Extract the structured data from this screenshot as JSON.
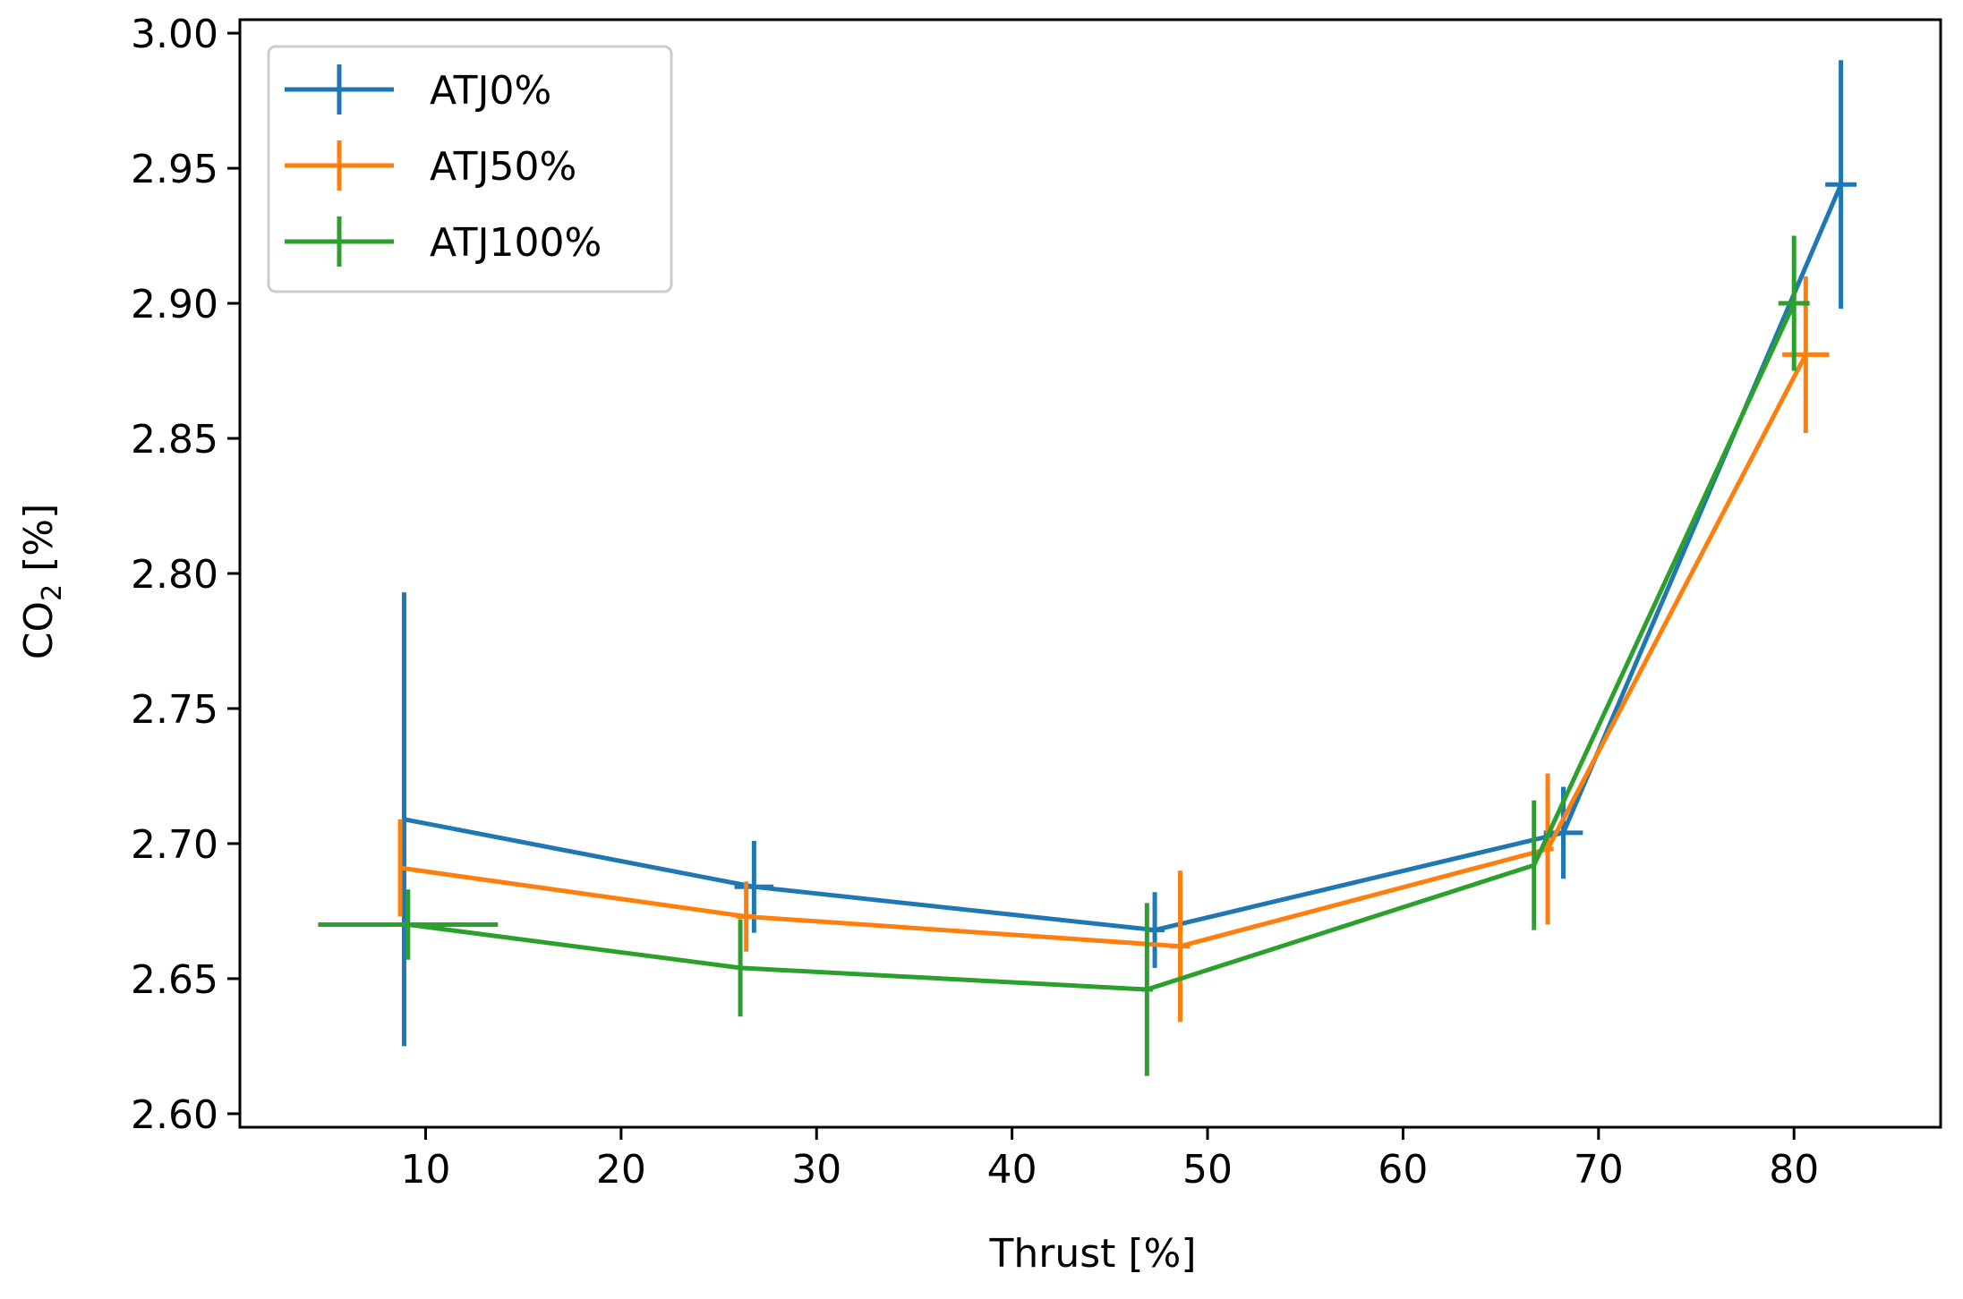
{
  "chart_data": {
    "type": "line",
    "title": "",
    "xlabel": "Thrust [%]",
    "ylabel_main": "CO",
    "ylabel_sub": "2",
    "ylabel_tail": " [%]",
    "xlim": [
      0.5,
      87.5
    ],
    "ylim": [
      2.595,
      3.005
    ],
    "xticks": [
      10,
      20,
      30,
      40,
      50,
      60,
      70,
      80
    ],
    "yticks": [
      2.6,
      2.65,
      2.7,
      2.75,
      2.8,
      2.85,
      2.9,
      2.95,
      3.0
    ],
    "ytick_labels": [
      "2.60",
      "2.65",
      "2.70",
      "2.75",
      "2.80",
      "2.85",
      "2.90",
      "2.95",
      "3.00"
    ],
    "legend_position": "top-left",
    "grid": false,
    "series": [
      {
        "name": "ATJ0%",
        "color": "#1f77b4",
        "points": [
          {
            "x": 8.9,
            "y": 2.709,
            "xerr": 0.0,
            "yerr": 0.084
          },
          {
            "x": 26.8,
            "y": 2.684,
            "xerr": 1.0,
            "yerr": 0.017
          },
          {
            "x": 47.3,
            "y": 2.668,
            "xerr": 0.5,
            "yerr": 0.014
          },
          {
            "x": 68.2,
            "y": 2.704,
            "xerr": 1.0,
            "yerr": 0.017
          },
          {
            "x": 82.4,
            "y": 2.944,
            "xerr": 0.8,
            "yerr": 0.046
          }
        ]
      },
      {
        "name": "ATJ50%",
        "color": "#ff7f0e",
        "points": [
          {
            "x": 8.7,
            "y": 2.691,
            "xerr": 0.0,
            "yerr": 0.018
          },
          {
            "x": 26.4,
            "y": 2.673,
            "xerr": 0.5,
            "yerr": 0.013
          },
          {
            "x": 48.6,
            "y": 2.662,
            "xerr": 0.5,
            "yerr": 0.028
          },
          {
            "x": 67.4,
            "y": 2.698,
            "xerr": 0.3,
            "yerr": 0.028
          },
          {
            "x": 80.6,
            "y": 2.881,
            "xerr": 1.2,
            "yerr": 0.029
          }
        ]
      },
      {
        "name": "ATJ100%",
        "color": "#2ca02c",
        "points": [
          {
            "x": 9.1,
            "y": 2.67,
            "xerr": 4.6,
            "yerr": 0.013
          },
          {
            "x": 26.1,
            "y": 2.654,
            "xerr": 0.0,
            "yerr": 0.018
          },
          {
            "x": 46.9,
            "y": 2.646,
            "xerr": 0.3,
            "yerr": 0.032
          },
          {
            "x": 66.7,
            "y": 2.692,
            "xerr": 0.0,
            "yerr": 0.024
          },
          {
            "x": 80.0,
            "y": 2.9,
            "xerr": 0.8,
            "yerr": 0.025
          }
        ]
      }
    ]
  }
}
